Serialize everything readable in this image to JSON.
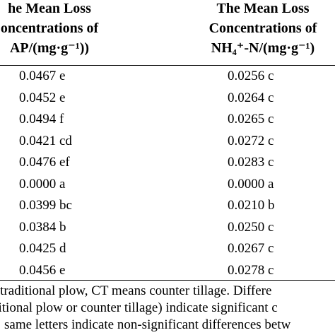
{
  "headers": {
    "ap": {
      "line1": "he Mean Loss",
      "line2": "oncentrations of",
      "line3": "AP/(mg·g⁻¹))"
    },
    "nh": {
      "line1": "The Mean Loss",
      "line2": "Concentrations of",
      "line3": "NH₄⁺-N/(mg·g⁻¹)"
    }
  },
  "rows": [
    {
      "ap": "0.0467 e",
      "nh": "0.0256 c"
    },
    {
      "ap": "0.0452 e",
      "nh": "0.0264 c"
    },
    {
      "ap": "0.0494 f",
      "nh": "0.0265 c"
    },
    {
      "ap": "0.0421 cd",
      "nh": "0.0272 c"
    },
    {
      "ap": "0.0476 ef",
      "nh": "0.0283 c"
    },
    {
      "ap": "0.0000 a",
      "nh": "0.0000 a"
    },
    {
      "ap": "0.0399 bc",
      "nh": "0.0210 b"
    },
    {
      "ap": "0.0384 b",
      "nh": "0.0250 c"
    },
    {
      "ap": "0.0425 d",
      "nh": "0.0267 c"
    },
    {
      "ap": "0.0456 e",
      "nh": "0.0278 c"
    }
  ],
  "notes": [
    "s traditional plow, CT means counter tillage. Differe",
    "ditional plow or counter tillage) indicate significant c",
    "same letters indicate non-significant differences betw"
  ]
}
